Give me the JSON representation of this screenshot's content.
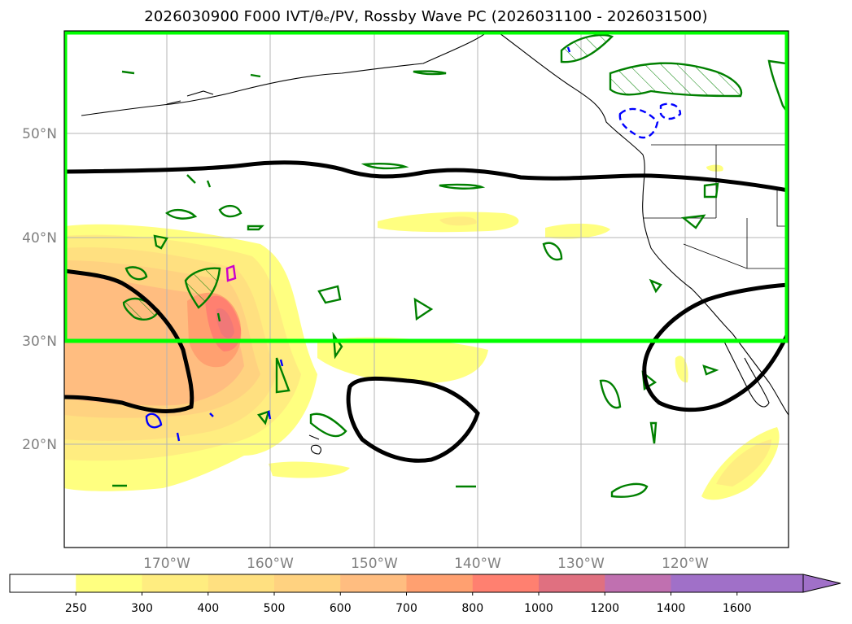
{
  "title": "2026030900 F000 IVT/θₑ/PV, Rossby Wave PC (2026031100 - 2026031500)",
  "map": {
    "lat_labels": [
      "50°N",
      "40°N",
      "30°N",
      "20°N"
    ],
    "lon_labels": [
      "170°W",
      "160°W",
      "150°W",
      "140°W",
      "130°W",
      "120°W"
    ],
    "box_color": "#00ff00",
    "pc_line_color": "#000000",
    "pv_positive_color": "#008000",
    "pv_negative_color": "#0000ff",
    "extra_contour_color": "#cc00cc"
  },
  "colorbar": {
    "levels": [
      "250",
      "300",
      "400",
      "500",
      "600",
      "700",
      "800",
      "1000",
      "1200",
      "1400",
      "1600"
    ],
    "colors": [
      "#ffffff",
      "#ffff80",
      "#ffed80",
      "#ffe080",
      "#ffd280",
      "#ffbd80",
      "#ffa070",
      "#ff8070",
      "#e07080",
      "#c070b0",
      "#a070c8",
      "#a070c8"
    ]
  }
}
